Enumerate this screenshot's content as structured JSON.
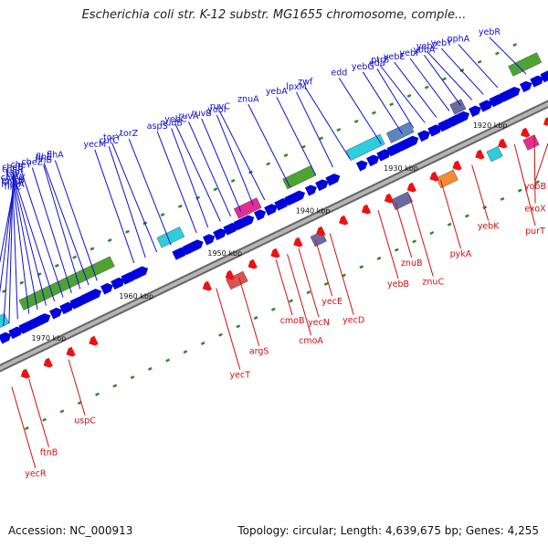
{
  "title": "Escherichia coli str. K-12 substr. MG1655 chromosome, comple...",
  "footer": {
    "accession": "Accession: NC_000913",
    "topology": "Topology: circular; Length: 4,639,675 bp; Genes: 4,255"
  },
  "colors": {
    "forward_label": "#1010cc",
    "reverse_label": "#cc1010",
    "forward_arrow": "#0000dd",
    "reverse_arrow": "#ee1111",
    "backbone": "#888888"
  },
  "kbp_marks": [
    {
      "label": "1920 kbp",
      "t": 0.857
    },
    {
      "label": "1930 kbp",
      "t": 0.7
    },
    {
      "label": "1940 kbp",
      "t": 0.545
    },
    {
      "label": "1950 kbp",
      "t": 0.39
    },
    {
      "label": "1960 kbp",
      "t": 0.234
    },
    {
      "label": "1970 kbp",
      "t": 0.08
    }
  ],
  "forward_genes": [
    {
      "name": "yebR",
      "t": 0.97
    },
    {
      "name": "pphA",
      "t": 0.92
    },
    {
      "name": "yebY",
      "t": 0.895
    },
    {
      "name": "yebZ",
      "t": 0.875
    },
    {
      "name": "yobA",
      "t": 0.855
    },
    {
      "name": "yebF",
      "t": 0.835
    },
    {
      "name": "yebE",
      "t": 0.812
    },
    {
      "name": "ptrB",
      "t": 0.792
    },
    {
      "name": "eda",
      "t": 0.772
    },
    {
      "name": "yebG",
      "t": 0.752
    },
    {
      "name": "edd",
      "t": 0.715
    },
    {
      "name": "zwf",
      "t": 0.66
    },
    {
      "name": "lpxM",
      "t": 0.63
    },
    {
      "name": "yebA",
      "t": 0.6
    },
    {
      "name": "znuA",
      "t": 0.555
    },
    {
      "name": "ruvC",
      "t": 0.51
    },
    {
      "name": "yobI",
      "t": 0.49
    },
    {
      "name": "ruvB",
      "t": 0.468
    },
    {
      "name": "ruvA",
      "t": 0.45
    },
    {
      "name": "yebC",
      "t": 0.432
    },
    {
      "name": "nudB",
      "t": 0.41
    },
    {
      "name": "aspS",
      "t": 0.39
    },
    {
      "name": "torZ",
      "t": 0.345
    },
    {
      "name": "torY",
      "t": 0.32
    },
    {
      "name": "cutC",
      "t": 0.3
    },
    {
      "name": "yecM",
      "t": 0.28
    },
    {
      "name": "flhA",
      "t": 0.215
    },
    {
      "name": "flhE",
      "t": 0.2
    },
    {
      "name": "flhB",
      "t": 0.185
    },
    {
      "name": "cheZ",
      "t": 0.17
    },
    {
      "name": "cheY",
      "t": 0.155
    },
    {
      "name": "cheB",
      "t": 0.14
    },
    {
      "name": "cheR",
      "t": 0.125
    },
    {
      "name": "tap",
      "t": 0.11
    },
    {
      "name": "tar",
      "t": 0.095
    },
    {
      "name": "cheW",
      "t": 0.075
    },
    {
      "name": "motB",
      "t": 0.06
    },
    {
      "name": "cheA",
      "t": 0.05
    },
    {
      "name": "motA",
      "t": 0.035
    },
    {
      "name": "flhC",
      "t": 0.02
    }
  ],
  "reverse_genes": [
    {
      "name": "yobB",
      "t": 0.975
    },
    {
      "name": "exoX",
      "t": 0.94
    },
    {
      "name": "purT",
      "t": 0.905
    },
    {
      "name": "yebK",
      "t": 0.83
    },
    {
      "name": "pykA",
      "t": 0.775
    },
    {
      "name": "znuC",
      "t": 0.72
    },
    {
      "name": "znuB",
      "t": 0.695
    },
    {
      "name": "yebB",
      "t": 0.665
    },
    {
      "name": "yecD",
      "t": 0.58
    },
    {
      "name": "yecE",
      "t": 0.555
    },
    {
      "name": "yecN",
      "t": 0.525
    },
    {
      "name": "cmoA",
      "t": 0.505
    },
    {
      "name": "cmoB",
      "t": 0.485
    },
    {
      "name": "argS",
      "t": 0.42
    },
    {
      "name": "yecT",
      "t": 0.38
    },
    {
      "name": "uspC",
      "t": 0.12
    },
    {
      "name": "ftnB",
      "t": 0.05
    },
    {
      "name": "yecR",
      "t": 0.02
    }
  ]
}
